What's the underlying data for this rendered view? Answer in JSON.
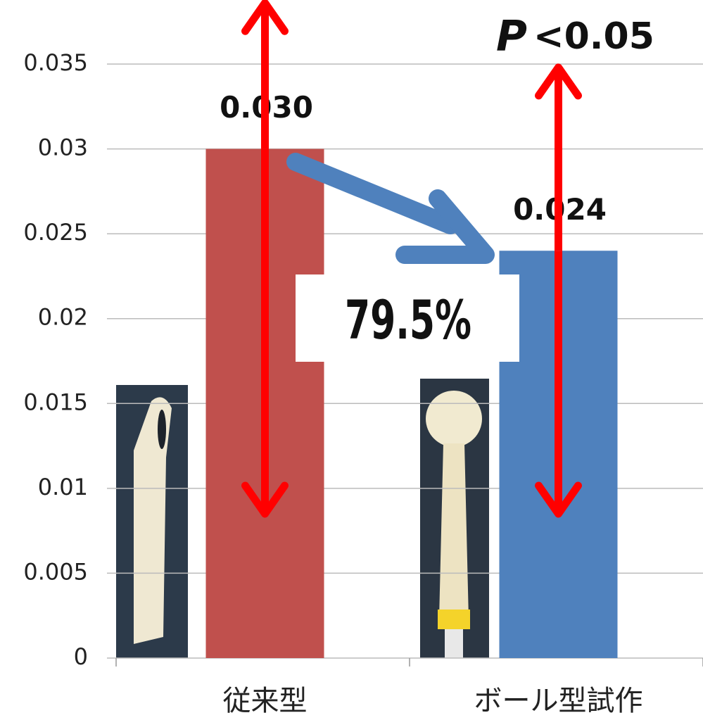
{
  "chart_data": {
    "type": "bar",
    "categories": [
      "従来型",
      "ボール型試作"
    ],
    "values": [
      0.03,
      0.024
    ],
    "value_labels": [
      "0.030",
      "0.024"
    ],
    "colors": [
      "#c0504d",
      "#4f81bd"
    ],
    "error_low": [
      0.0215,
      0.0155
    ],
    "error_high": [
      0.0086,
      0.0108
    ],
    "error_color": "#ff0000",
    "ylim": [
      0,
      0.035
    ],
    "yticks": [
      0,
      0.005,
      0.01,
      0.015,
      0.02,
      0.025,
      0.03,
      0.035
    ],
    "grid": true,
    "annotations": {
      "p_symbol": "P",
      "p_value": "<0.05",
      "ratio": "79.5%"
    }
  }
}
